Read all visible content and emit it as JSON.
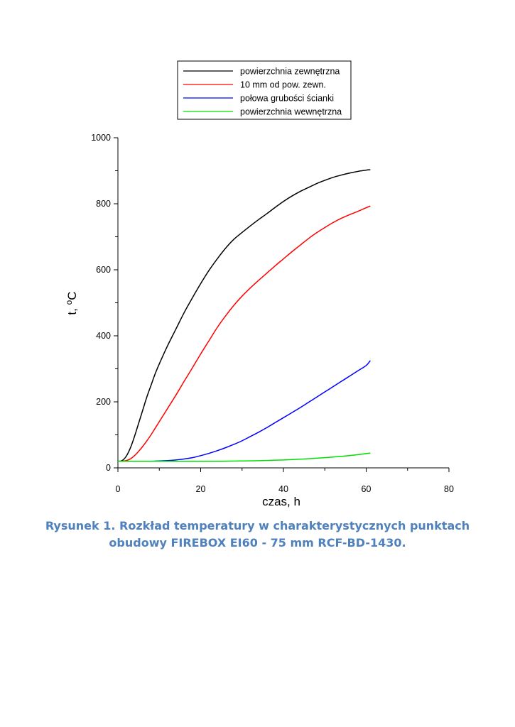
{
  "chart_data": {
    "type": "line",
    "title": "",
    "xlabel": "czas, h",
    "ylabel_main": "t, ",
    "ylabel_sup": "o",
    "ylabel_unit": "C",
    "xlim": [
      0,
      80
    ],
    "ylim": [
      0,
      1000
    ],
    "x_ticks": [
      0,
      20,
      40,
      60,
      80
    ],
    "x_tick_labels": [
      "0",
      "20",
      "40",
      "60",
      "80"
    ],
    "x_minor_ticks": [
      10,
      30,
      50,
      70
    ],
    "y_ticks": [
      0,
      200,
      400,
      600,
      800,
      1000
    ],
    "y_tick_labels": [
      "0",
      "200",
      "400",
      "600",
      "800",
      "1000"
    ],
    "y_minor_ticks": [
      100,
      300,
      500,
      700,
      900
    ],
    "grid": false,
    "legend_position": "top",
    "series": [
      {
        "name": "powierzchnia zewnętrzna",
        "color": "#000000",
        "x": [
          0,
          1,
          2,
          3,
          4,
          5,
          6,
          7,
          8,
          9,
          10,
          12,
          14,
          16,
          18,
          20,
          22,
          24,
          26,
          28,
          30,
          32,
          34,
          36,
          38,
          40,
          42,
          44,
          46,
          48,
          50,
          52,
          54,
          56,
          58,
          60,
          61
        ],
        "y": [
          20,
          22,
          35,
          60,
          95,
          135,
          175,
          215,
          250,
          285,
          315,
          370,
          420,
          470,
          515,
          558,
          598,
          633,
          665,
          692,
          713,
          733,
          752,
          770,
          789,
          807,
          823,
          837,
          849,
          861,
          871,
          880,
          887,
          893,
          898,
          902,
          903
        ]
      },
      {
        "name": "10 mm od pow. zewn.",
        "color": "#ff0000",
        "x": [
          0,
          1,
          2,
          3,
          4,
          5,
          6,
          7,
          8,
          9,
          10,
          12,
          14,
          16,
          18,
          20,
          22,
          24,
          26,
          28,
          30,
          32,
          34,
          36,
          38,
          40,
          42,
          44,
          46,
          48,
          50,
          52,
          54,
          56,
          58,
          60,
          61
        ],
        "y": [
          20,
          20,
          22,
          27,
          37,
          50,
          65,
          82,
          100,
          120,
          140,
          180,
          220,
          262,
          303,
          345,
          385,
          425,
          460,
          492,
          520,
          545,
          568,
          590,
          612,
          633,
          654,
          674,
          694,
          712,
          728,
          743,
          756,
          767,
          777,
          788,
          793
        ]
      },
      {
        "name": "połowa grubości ścianki",
        "color": "#0000ff",
        "x": [
          0,
          5,
          8,
          10,
          12,
          14,
          16,
          18,
          20,
          22,
          24,
          26,
          28,
          30,
          32,
          34,
          36,
          38,
          40,
          42,
          44,
          46,
          48,
          50,
          52,
          54,
          56,
          58,
          60,
          61
        ],
        "y": [
          20,
          20,
          20,
          21,
          22,
          24,
          27,
          31,
          37,
          44,
          52,
          61,
          71,
          82,
          95,
          108,
          122,
          137,
          152,
          167,
          182,
          198,
          214,
          230,
          246,
          262,
          278,
          294,
          310,
          325
        ]
      },
      {
        "name": "powierzchnia wewnętrzna",
        "color": "#00e000",
        "x": [
          0,
          10,
          20,
          25,
          30,
          35,
          40,
          45,
          50,
          55,
          58,
          61
        ],
        "y": [
          20,
          20,
          20,
          20,
          21,
          22,
          24,
          27,
          31,
          36,
          40,
          45
        ]
      }
    ]
  },
  "caption": {
    "line1": "Rysunek 1. Rozkład temperatury w charakterystycznych punktach",
    "line2": "obudowy FIREBOX EI60 - 75 mm RCF-BD-1430."
  }
}
